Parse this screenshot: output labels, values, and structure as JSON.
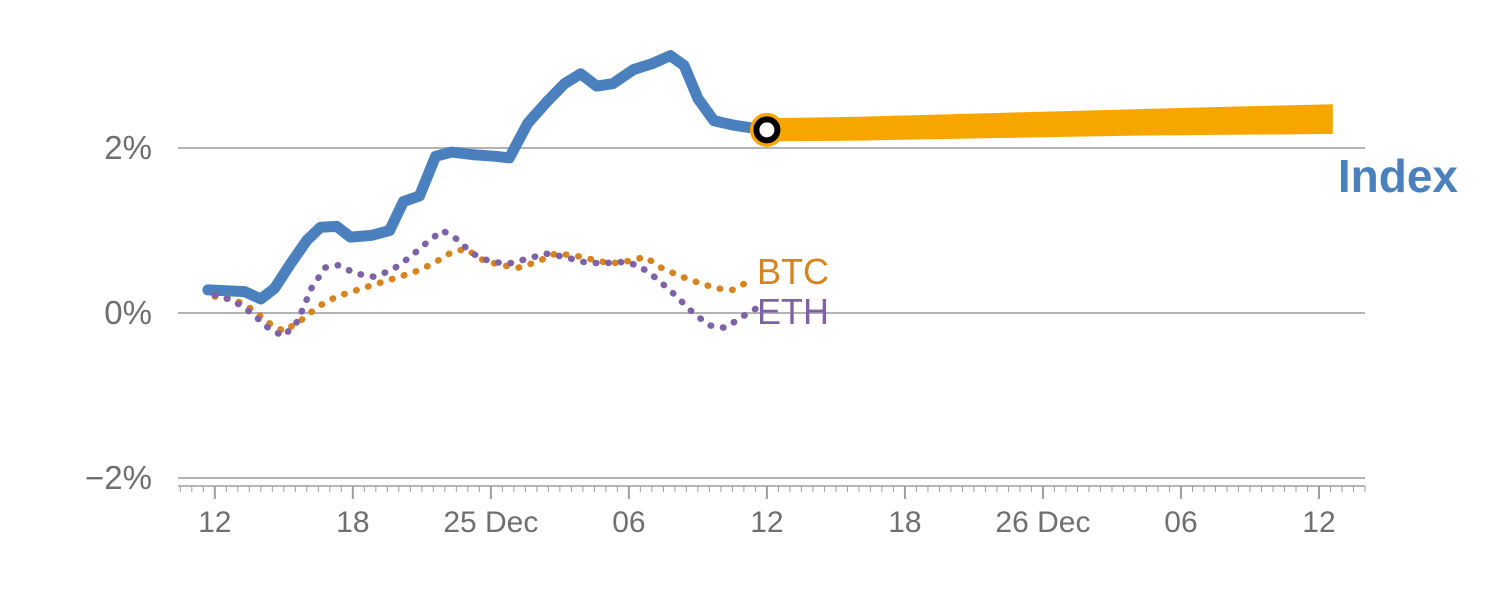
{
  "chart_data": {
    "type": "line",
    "title": "",
    "xlabel": "",
    "ylabel": "",
    "grid": true,
    "legend_position": "inline-right",
    "x_axis": {
      "range": [
        10.4,
        62.0
      ],
      "minor_tick_step": 0.5,
      "ticks": [
        {
          "x": 12,
          "label": "12"
        },
        {
          "x": 18,
          "label": "18"
        },
        {
          "x": 24,
          "label": "25 Dec"
        },
        {
          "x": 30,
          "label": "06"
        },
        {
          "x": 36,
          "label": "12"
        },
        {
          "x": 42,
          "label": "18"
        },
        {
          "x": 48,
          "label": "26 Dec"
        },
        {
          "x": 54,
          "label": "06"
        },
        {
          "x": 60,
          "label": "12"
        }
      ]
    },
    "y_axis": {
      "range": [
        -2.2,
        3.3
      ],
      "unit": "%",
      "ticks": [
        {
          "value": 2,
          "label": "2%"
        },
        {
          "value": 0,
          "label": "0%"
        },
        {
          "value": -2,
          "label": "−2%"
        }
      ]
    },
    "series": [
      {
        "id": "index",
        "label": "Index",
        "color": "#4a80bd",
        "style": "solid",
        "width": 11,
        "points": [
          [
            11.7,
            0.28
          ],
          [
            12.5,
            0.27
          ],
          [
            13.3,
            0.26
          ],
          [
            14.0,
            0.17
          ],
          [
            14.6,
            0.3
          ],
          [
            15.3,
            0.6
          ],
          [
            16.0,
            0.88
          ],
          [
            16.6,
            1.04
          ],
          [
            17.3,
            1.05
          ],
          [
            17.9,
            0.92
          ],
          [
            18.8,
            0.94
          ],
          [
            19.6,
            1.0
          ],
          [
            20.2,
            1.35
          ],
          [
            20.9,
            1.42
          ],
          [
            21.6,
            1.9
          ],
          [
            22.3,
            1.95
          ],
          [
            23.2,
            1.92
          ],
          [
            24.2,
            1.9
          ],
          [
            24.8,
            1.88
          ],
          [
            25.6,
            2.3
          ],
          [
            26.4,
            2.55
          ],
          [
            27.2,
            2.78
          ],
          [
            27.9,
            2.9
          ],
          [
            28.6,
            2.75
          ],
          [
            29.3,
            2.78
          ],
          [
            30.2,
            2.95
          ],
          [
            31.0,
            3.02
          ],
          [
            31.8,
            3.12
          ],
          [
            32.4,
            3.0
          ],
          [
            33.0,
            2.6
          ],
          [
            33.7,
            2.33
          ],
          [
            34.5,
            2.28
          ],
          [
            35.2,
            2.25
          ],
          [
            36.0,
            2.22
          ]
        ]
      },
      {
        "id": "index-forecast",
        "label": "",
        "color": "#f7a600",
        "style": "band",
        "upper": [
          [
            36.0,
            2.36
          ],
          [
            40.0,
            2.38
          ],
          [
            44.0,
            2.41
          ],
          [
            48.0,
            2.44
          ],
          [
            52.0,
            2.47
          ],
          [
            56.0,
            2.5
          ],
          [
            60.6,
            2.53
          ]
        ],
        "lower": [
          [
            36.0,
            2.08
          ],
          [
            40.0,
            2.09
          ],
          [
            44.0,
            2.11
          ],
          [
            48.0,
            2.13
          ],
          [
            52.0,
            2.15
          ],
          [
            56.0,
            2.16
          ],
          [
            60.6,
            2.17
          ]
        ]
      },
      {
        "id": "btc",
        "label": "BTC",
        "color": "#d9831f",
        "style": "dotted",
        "width": 6.5,
        "points": [
          [
            12.0,
            0.2
          ],
          [
            12.8,
            0.17
          ],
          [
            13.6,
            0.05
          ],
          [
            14.4,
            -0.13
          ],
          [
            15.0,
            -0.22
          ],
          [
            15.7,
            -0.1
          ],
          [
            16.5,
            0.08
          ],
          [
            17.3,
            0.2
          ],
          [
            18.2,
            0.28
          ],
          [
            19.0,
            0.35
          ],
          [
            19.8,
            0.42
          ],
          [
            20.7,
            0.5
          ],
          [
            21.5,
            0.6
          ],
          [
            22.2,
            0.72
          ],
          [
            22.9,
            0.78
          ],
          [
            23.6,
            0.65
          ],
          [
            24.4,
            0.58
          ],
          [
            25.2,
            0.55
          ],
          [
            26.0,
            0.62
          ],
          [
            26.8,
            0.72
          ],
          [
            27.6,
            0.7
          ],
          [
            28.4,
            0.65
          ],
          [
            29.2,
            0.6
          ],
          [
            30.0,
            0.63
          ],
          [
            30.7,
            0.68
          ],
          [
            31.4,
            0.55
          ],
          [
            32.2,
            0.45
          ],
          [
            33.0,
            0.37
          ],
          [
            33.8,
            0.3
          ],
          [
            34.5,
            0.28
          ],
          [
            35.2,
            0.38
          ]
        ]
      },
      {
        "id": "eth",
        "label": "ETH",
        "color": "#7d62a8",
        "style": "dotted",
        "width": 6.5,
        "points": [
          [
            12.0,
            0.22
          ],
          [
            12.8,
            0.15
          ],
          [
            13.6,
            0.0
          ],
          [
            14.4,
            -0.2
          ],
          [
            15.0,
            -0.28
          ],
          [
            15.6,
            -0.1
          ],
          [
            16.2,
            0.3
          ],
          [
            16.8,
            0.55
          ],
          [
            17.4,
            0.58
          ],
          [
            18.1,
            0.48
          ],
          [
            18.9,
            0.44
          ],
          [
            19.7,
            0.52
          ],
          [
            20.5,
            0.68
          ],
          [
            21.2,
            0.85
          ],
          [
            21.9,
            1.0
          ],
          [
            22.5,
            0.9
          ],
          [
            23.2,
            0.72
          ],
          [
            24.0,
            0.62
          ],
          [
            24.8,
            0.6
          ],
          [
            25.6,
            0.66
          ],
          [
            26.4,
            0.72
          ],
          [
            27.2,
            0.68
          ],
          [
            28.0,
            0.62
          ],
          [
            28.8,
            0.6
          ],
          [
            29.6,
            0.62
          ],
          [
            30.4,
            0.58
          ],
          [
            31.2,
            0.42
          ],
          [
            32.0,
            0.22
          ],
          [
            32.8,
            0.0
          ],
          [
            33.5,
            -0.15
          ],
          [
            34.2,
            -0.18
          ],
          [
            34.9,
            -0.05
          ],
          [
            35.5,
            0.05
          ]
        ]
      }
    ],
    "marker": {
      "x": 36,
      "value": 2.22,
      "ring_color": "#000000",
      "fill": "#ffffff",
      "halo_color": "#f7a600"
    },
    "colors": {
      "gridline": "#b3b3b3",
      "axis": "#9e9e9e",
      "axis_text": "#6f6f6f"
    }
  }
}
